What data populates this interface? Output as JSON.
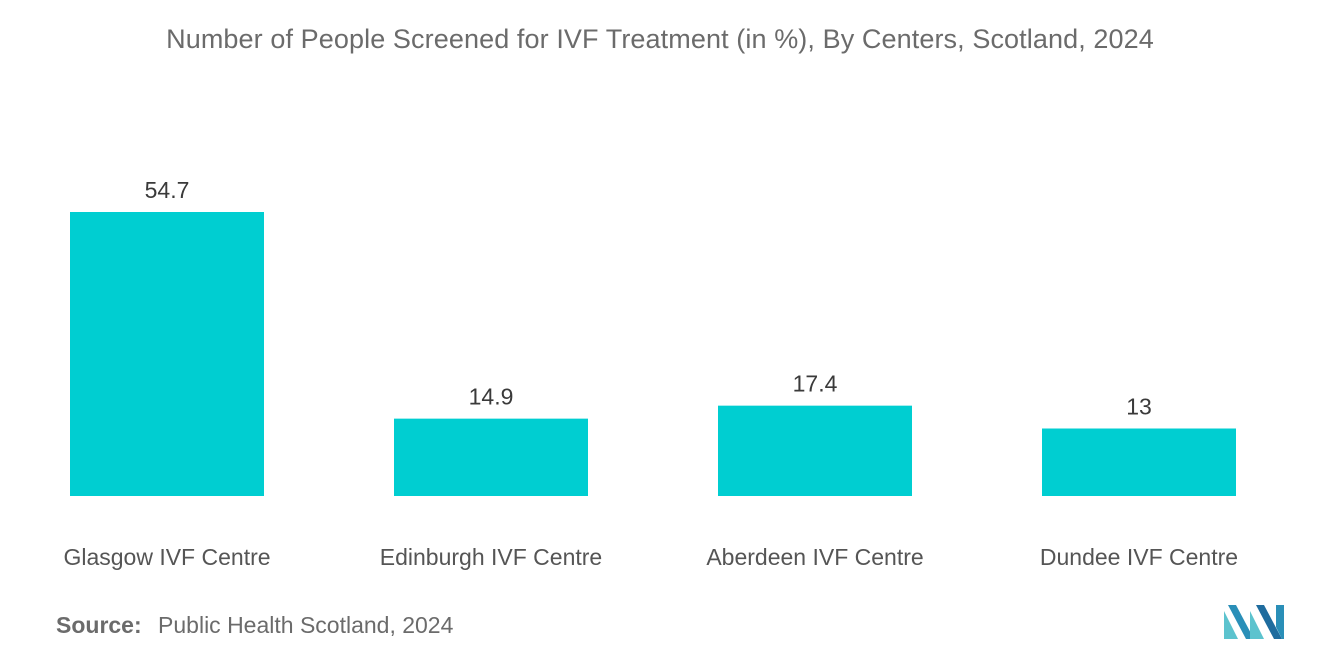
{
  "chart_data": {
    "type": "bar",
    "title": "Number of People Screened for IVF Treatment (in %), By Centers, Scotland, 2024",
    "categories": [
      "Glasgow IVF Centre",
      "Edinburgh IVF Centre",
      "Aberdeen IVF Centre",
      "Dundee IVF Centre"
    ],
    "values": [
      54.7,
      14.9,
      17.4,
      13
    ],
    "value_labels": [
      "54.7",
      "14.9",
      "17.4",
      "13"
    ],
    "xlabel": "",
    "ylabel": "",
    "ylim": [
      0,
      54.7
    ],
    "grid": false,
    "legend": "none",
    "bar_color": "#00CED1"
  },
  "source": {
    "label": "Source:",
    "text": "Public Health Scotland, 2024"
  },
  "brand": {
    "logo_icon": "mordor-intelligence-logo-icon",
    "colors": [
      "#5CC3CE",
      "#1F6C9E"
    ]
  }
}
